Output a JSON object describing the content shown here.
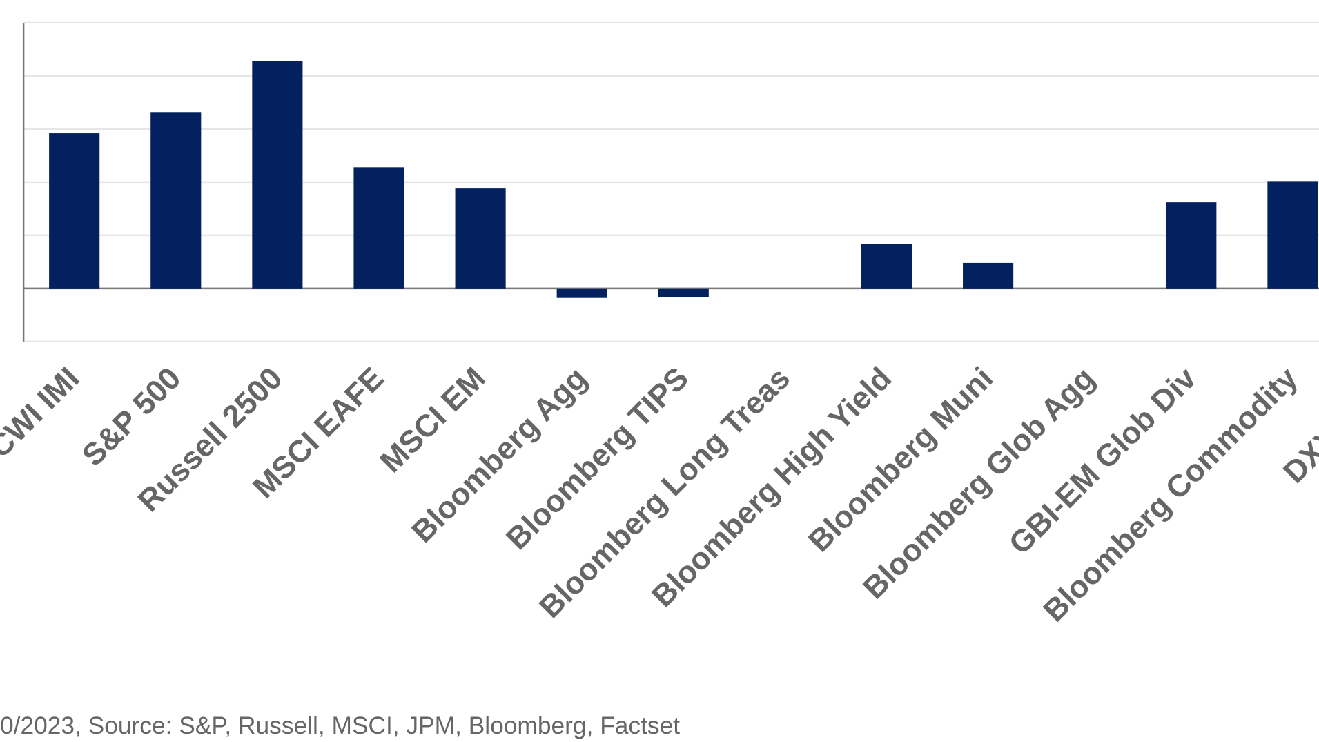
{
  "chart_data": {
    "type": "bar",
    "categories": [
      "CWI IMI",
      "S&P 500",
      "Russell 2500",
      "MSCI EAFE",
      "MSCI EM",
      "Bloomberg Agg",
      "Bloomberg TIPS",
      "Bloomberg Long Treas",
      "Bloomberg High Yield",
      "Bloomberg Muni",
      "Bloomberg Glob Agg",
      "GBI-EM Glob Div",
      "Bloomberg Commodity",
      "DXY Dolla"
    ],
    "values": [
      14.6,
      16.6,
      21.4,
      11.4,
      9.4,
      -0.9,
      -0.8,
      0,
      4.2,
      2.4,
      0,
      8.1,
      10.1,
      null
    ],
    "color": "#03215e",
    "ylim": [
      -5,
      25
    ],
    "yticks": [
      -5,
      0,
      5,
      10,
      15,
      20,
      25
    ],
    "grid": true,
    "footnote": "0/2023, Source: S&P, Russell, MSCI, JPM, Bloomberg, Factset"
  }
}
